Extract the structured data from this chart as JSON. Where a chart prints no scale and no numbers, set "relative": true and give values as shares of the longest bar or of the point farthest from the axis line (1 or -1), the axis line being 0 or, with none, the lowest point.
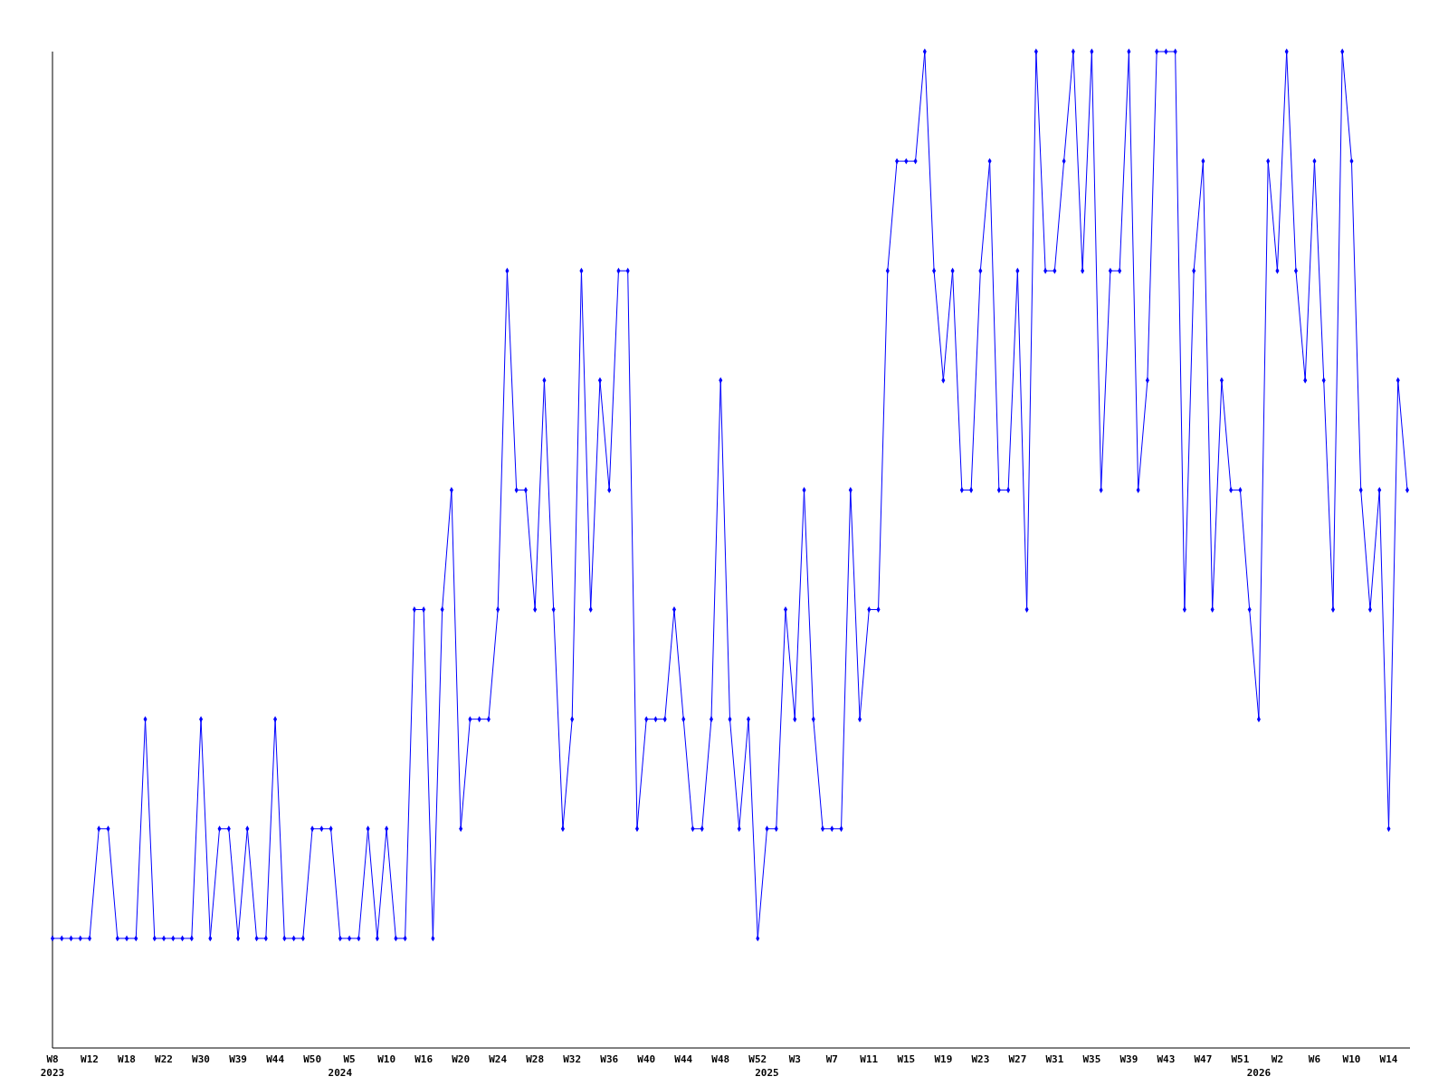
{
  "chart_data": {
    "type": "line",
    "relative": true,
    "color": "#0000ff",
    "marker": "diamond",
    "line_style": "solid",
    "categories": [
      "W8\n2023",
      null,
      null,
      null,
      "W12",
      null,
      null,
      null,
      "W18",
      null,
      null,
      null,
      "W22",
      null,
      null,
      null,
      "W30",
      null,
      null,
      null,
      "W39",
      null,
      null,
      null,
      "W44",
      null,
      null,
      null,
      "W50",
      null,
      null,
      "\n2024",
      "W5",
      null,
      null,
      null,
      "W10",
      null,
      null,
      null,
      "W16",
      null,
      null,
      null,
      "W20",
      null,
      null,
      null,
      "W24",
      null,
      null,
      null,
      "W28",
      null,
      null,
      null,
      "W32",
      null,
      null,
      null,
      "W36",
      null,
      null,
      null,
      "W40",
      null,
      null,
      null,
      "W44",
      null,
      null,
      null,
      "W48",
      null,
      null,
      null,
      "W52",
      "\n2025",
      null,
      null,
      "W3",
      null,
      null,
      null,
      "W7",
      null,
      null,
      null,
      "W11",
      null,
      null,
      null,
      "W15",
      null,
      null,
      null,
      "W19",
      null,
      null,
      null,
      "W23",
      null,
      null,
      null,
      "W27",
      null,
      null,
      null,
      "W31",
      null,
      null,
      null,
      "W35",
      null,
      null,
      null,
      "W39",
      null,
      null,
      null,
      "W43",
      null,
      null,
      null,
      "W47",
      null,
      null,
      null,
      "W51",
      null,
      "\n2026",
      null,
      "W2",
      null,
      null,
      null,
      "W6",
      null,
      null,
      null,
      "W10",
      null,
      null,
      null,
      "W14",
      null,
      null
    ],
    "values": [
      0.11,
      0.11,
      0.11,
      0.11,
      0.11,
      0.22,
      0.22,
      0.11,
      0.11,
      0.11,
      0.33,
      0.11,
      0.11,
      0.11,
      0.11,
      0.11,
      0.33,
      0.11,
      0.22,
      0.22,
      0.11,
      0.22,
      0.11,
      0.11,
      0.33,
      0.11,
      0.11,
      0.11,
      0.22,
      0.22,
      0.22,
      0.11,
      0.11,
      0.11,
      0.22,
      0.11,
      0.22,
      0.11,
      0.11,
      0.44,
      0.44,
      0.11,
      0.44,
      0.56,
      0.22,
      0.33,
      0.33,
      0.33,
      0.44,
      0.78,
      0.56,
      0.56,
      0.44,
      0.67,
      0.44,
      0.22,
      0.33,
      0.78,
      0.44,
      0.67,
      0.56,
      0.78,
      0.78,
      0.22,
      0.33,
      0.33,
      0.33,
      0.44,
      0.33,
      0.22,
      0.22,
      0.33,
      0.67,
      0.33,
      0.22,
      0.33,
      0.11,
      0.22,
      0.22,
      0.44,
      0.33,
      0.56,
      0.33,
      0.22,
      0.22,
      0.22,
      0.56,
      0.33,
      0.44,
      0.44,
      0.78,
      0.89,
      0.89,
      0.89,
      1,
      0.78,
      0.67,
      0.78,
      0.56,
      0.56,
      0.78,
      0.89,
      0.56,
      0.56,
      0.78,
      0.44,
      1,
      0.78,
      0.78,
      0.89,
      1,
      0.78,
      1,
      0.56,
      0.78,
      0.78,
      1,
      0.56,
      0.67,
      1,
      1,
      1,
      0.44,
      0.78,
      0.89,
      0.44,
      0.67,
      0.56,
      0.56,
      0.44,
      0.33,
      0.89,
      0.78,
      1,
      0.78,
      0.67,
      0.89,
      0.67,
      0.44,
      1,
      0.89,
      0.56,
      0.44,
      0.56,
      0.22,
      0.67,
      0.56
    ]
  }
}
